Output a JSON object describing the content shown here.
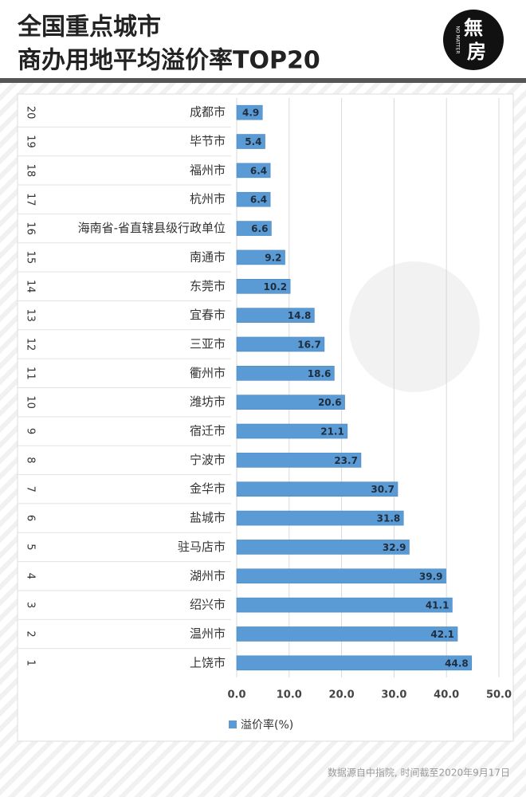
{
  "chart_data": {
    "type": "bar",
    "orientation": "horizontal",
    "title_lines": [
      "全国重点城市",
      "商办用地平均溢价率TOP20"
    ],
    "logo": [
      "無",
      "房"
    ],
    "logo_sub": "NO MATTER",
    "ranks": [
      20,
      19,
      18,
      17,
      16,
      15,
      14,
      13,
      12,
      11,
      10,
      9,
      8,
      7,
      6,
      5,
      4,
      3,
      2,
      1
    ],
    "categories": [
      "成都市",
      "毕节市",
      "福州市",
      "杭州市",
      "海南省-省直辖县级行政单位",
      "南通市",
      "东莞市",
      "宜春市",
      "三亚市",
      "衢州市",
      "潍坊市",
      "宿迁市",
      "宁波市",
      "金华市",
      "盐城市",
      "驻马店市",
      "湖州市",
      "绍兴市",
      "温州市",
      "上饶市"
    ],
    "series": [
      {
        "name": "溢价率(%)",
        "color": "#5b9bd5",
        "values": [
          4.9,
          5.4,
          6.4,
          6.4,
          6.6,
          9.2,
          10.2,
          14.8,
          16.7,
          18.6,
          20.6,
          21.1,
          23.7,
          30.7,
          31.8,
          32.9,
          39.9,
          41.1,
          42.1,
          44.8
        ]
      }
    ],
    "xlim": [
      0,
      50
    ],
    "xticks": [
      {
        "value": 0,
        "label": "0.0"
      },
      {
        "value": 10,
        "label": "10.0"
      },
      {
        "value": 20,
        "label": "20.0"
      },
      {
        "value": 30,
        "label": "30.0"
      },
      {
        "value": 40,
        "label": "40.0"
      },
      {
        "value": 50,
        "label": "50.0"
      }
    ],
    "grid": true,
    "source": "数据源自中指院, 时间截至2020年9月17日"
  }
}
